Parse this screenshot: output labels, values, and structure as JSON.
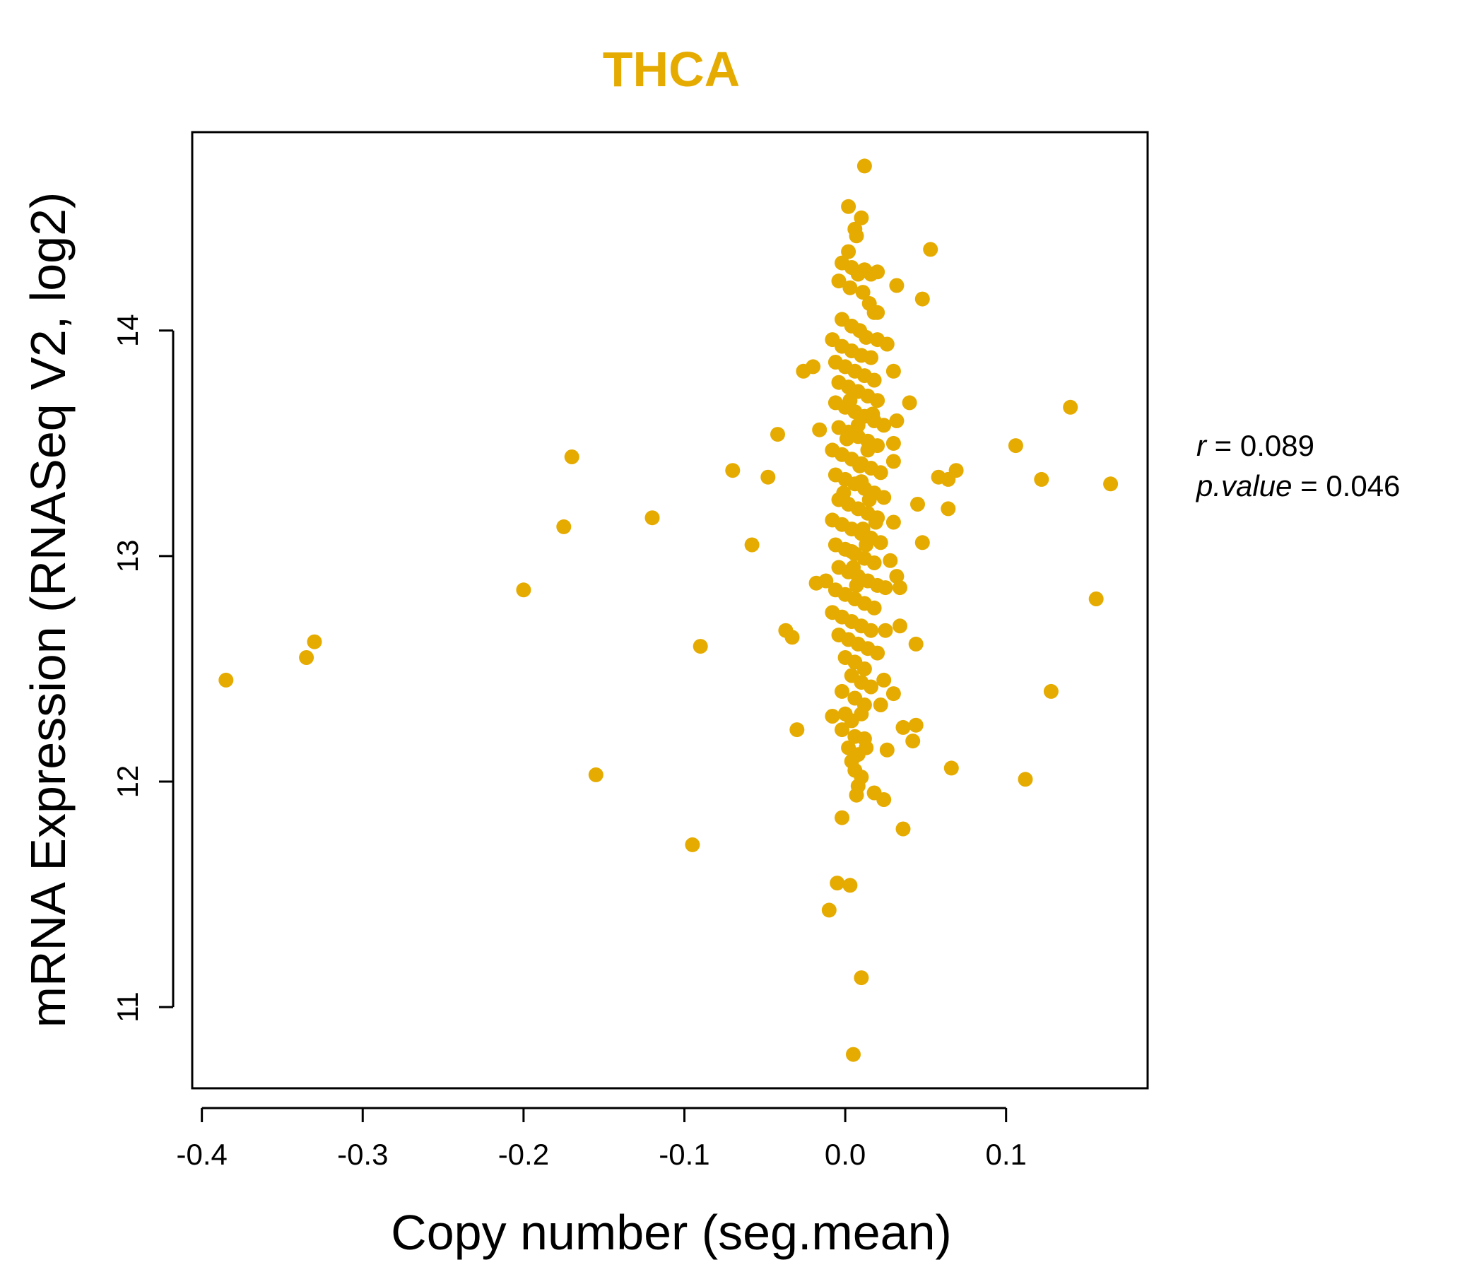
{
  "chart_data": {
    "type": "scatter",
    "title": "THCA",
    "xlabel": "Copy number (seg.mean)",
    "ylabel": "mRNA Expression (RNASeq V2, log2)",
    "xlim": [
      -0.406,
      0.188
    ],
    "ylim": [
      10.64,
      14.88
    ],
    "x_ticks": [
      -0.4,
      -0.3,
      -0.2,
      -0.1,
      0.0,
      0.1
    ],
    "x_tick_labels": [
      "-0.4",
      "-0.3",
      "-0.2",
      "-0.1",
      "0.0",
      "0.1"
    ],
    "y_ticks": [
      11,
      12,
      13,
      14
    ],
    "y_tick_labels": [
      "11",
      "12",
      "13",
      "14"
    ],
    "point_color": "#E5AB00",
    "stats": {
      "r_label": "r",
      "r_value": "0.089",
      "p_label": "p.value",
      "p_value": "0.046"
    },
    "points": [
      [
        -0.385,
        12.45
      ],
      [
        -0.335,
        12.55
      ],
      [
        -0.33,
        12.62
      ],
      [
        -0.2,
        12.85
      ],
      [
        -0.175,
        13.13
      ],
      [
        -0.17,
        13.44
      ],
      [
        -0.155,
        12.03
      ],
      [
        -0.12,
        13.17
      ],
      [
        -0.095,
        11.72
      ],
      [
        -0.09,
        12.6
      ],
      [
        -0.07,
        13.38
      ],
      [
        -0.058,
        13.05
      ],
      [
        -0.048,
        13.35
      ],
      [
        -0.042,
        13.54
      ],
      [
        -0.037,
        12.67
      ],
      [
        -0.033,
        12.64
      ],
      [
        -0.03,
        12.23
      ],
      [
        -0.026,
        13.82
      ],
      [
        -0.02,
        13.84
      ],
      [
        -0.018,
        12.88
      ],
      [
        -0.016,
        13.56
      ],
      [
        -0.012,
        12.89
      ],
      [
        -0.01,
        11.43
      ],
      [
        -0.005,
        11.55
      ],
      [
        -0.002,
        11.84
      ],
      [
        0.003,
        11.54
      ],
      [
        0.005,
        10.79
      ],
      [
        0.01,
        11.13
      ],
      [
        0.012,
        14.73
      ],
      [
        0.002,
        14.55
      ],
      [
        0.01,
        14.5
      ],
      [
        0.007,
        14.42
      ],
      [
        0.053,
        14.36
      ],
      [
        0.02,
        14.26
      ],
      [
        0.032,
        14.2
      ],
      [
        0.048,
        14.14
      ],
      [
        0.02,
        14.08
      ],
      [
        0.026,
        13.94
      ],
      [
        0.03,
        13.82
      ],
      [
        0.04,
        13.68
      ],
      [
        0.032,
        13.6
      ],
      [
        0.03,
        13.5
      ],
      [
        0.03,
        13.42
      ],
      [
        0.058,
        13.35
      ],
      [
        0.064,
        13.34
      ],
      [
        0.069,
        13.38
      ],
      [
        0.045,
        13.23
      ],
      [
        0.064,
        13.21
      ],
      [
        0.03,
        13.15
      ],
      [
        0.048,
        13.06
      ],
      [
        0.028,
        12.98
      ],
      [
        0.032,
        12.91
      ],
      [
        0.034,
        12.86
      ],
      [
        0.025,
        12.86
      ],
      [
        0.034,
        12.69
      ],
      [
        0.044,
        12.61
      ],
      [
        0.025,
        12.67
      ],
      [
        0.024,
        12.45
      ],
      [
        0.03,
        12.39
      ],
      [
        0.022,
        12.34
      ],
      [
        0.036,
        12.24
      ],
      [
        0.044,
        12.25
      ],
      [
        0.042,
        12.18
      ],
      [
        0.026,
        12.14
      ],
      [
        0.013,
        12.15
      ],
      [
        0.018,
        11.95
      ],
      [
        0.024,
        11.92
      ],
      [
        0.036,
        11.79
      ],
      [
        0.007,
        11.94
      ],
      [
        0.008,
        11.98
      ],
      [
        0.066,
        12.06
      ],
      [
        0.106,
        13.49
      ],
      [
        0.122,
        13.34
      ],
      [
        0.14,
        13.66
      ],
      [
        0.165,
        13.32
      ],
      [
        0.156,
        12.81
      ],
      [
        0.128,
        12.4
      ],
      [
        0.112,
        12.01
      ],
      [
        0.006,
        14.45
      ],
      [
        0.002,
        14.35
      ],
      [
        -0.002,
        14.3
      ],
      [
        0.004,
        14.28
      ],
      [
        0.008,
        14.25
      ],
      [
        0.012,
        14.27
      ],
      [
        0.016,
        14.25
      ],
      [
        -0.004,
        14.22
      ],
      [
        0.003,
        14.19
      ],
      [
        0.011,
        14.17
      ],
      [
        0.015,
        14.12
      ],
      [
        0.018,
        14.08
      ],
      [
        -0.002,
        14.05
      ],
      [
        0.004,
        14.02
      ],
      [
        0.009,
        14.0
      ],
      [
        0.013,
        13.97
      ],
      [
        0.02,
        13.96
      ],
      [
        -0.008,
        13.96
      ],
      [
        -0.002,
        13.93
      ],
      [
        0.004,
        13.91
      ],
      [
        0.01,
        13.89
      ],
      [
        0.016,
        13.88
      ],
      [
        -0.006,
        13.86
      ],
      [
        0.0,
        13.84
      ],
      [
        0.006,
        13.82
      ],
      [
        0.012,
        13.8
      ],
      [
        0.018,
        13.78
      ],
      [
        -0.004,
        13.77
      ],
      [
        0.002,
        13.75
      ],
      [
        0.008,
        13.73
      ],
      [
        0.014,
        13.71
      ],
      [
        0.02,
        13.69
      ],
      [
        -0.006,
        13.68
      ],
      [
        0.0,
        13.66
      ],
      [
        0.006,
        13.64
      ],
      [
        0.012,
        13.62
      ],
      [
        0.018,
        13.6
      ],
      [
        0.024,
        13.58
      ],
      [
        -0.004,
        13.57
      ],
      [
        0.002,
        13.55
      ],
      [
        0.008,
        13.53
      ],
      [
        0.014,
        13.51
      ],
      [
        0.02,
        13.49
      ],
      [
        -0.008,
        13.47
      ],
      [
        -0.002,
        13.45
      ],
      [
        0.004,
        13.43
      ],
      [
        0.01,
        13.41
      ],
      [
        0.016,
        13.39
      ],
      [
        0.022,
        13.37
      ],
      [
        -0.006,
        13.36
      ],
      [
        0.0,
        13.34
      ],
      [
        0.006,
        13.32
      ],
      [
        0.012,
        13.3
      ],
      [
        0.018,
        13.28
      ],
      [
        0.024,
        13.26
      ],
      [
        -0.004,
        13.25
      ],
      [
        0.002,
        13.23
      ],
      [
        0.008,
        13.21
      ],
      [
        0.014,
        13.19
      ],
      [
        0.02,
        13.17
      ],
      [
        -0.008,
        13.16
      ],
      [
        -0.002,
        13.14
      ],
      [
        0.004,
        13.12
      ],
      [
        0.01,
        13.1
      ],
      [
        0.016,
        13.08
      ],
      [
        0.022,
        13.06
      ],
      [
        -0.006,
        13.05
      ],
      [
        0.0,
        13.03
      ],
      [
        0.006,
        13.01
      ],
      [
        0.012,
        12.99
      ],
      [
        0.018,
        12.97
      ],
      [
        -0.004,
        12.95
      ],
      [
        0.002,
        12.93
      ],
      [
        0.008,
        12.91
      ],
      [
        0.014,
        12.89
      ],
      [
        0.02,
        12.87
      ],
      [
        -0.006,
        12.85
      ],
      [
        0.0,
        12.83
      ],
      [
        0.006,
        12.81
      ],
      [
        0.012,
        12.79
      ],
      [
        0.018,
        12.77
      ],
      [
        -0.008,
        12.75
      ],
      [
        -0.002,
        12.73
      ],
      [
        0.004,
        12.71
      ],
      [
        0.01,
        12.69
      ],
      [
        0.016,
        12.67
      ],
      [
        -0.004,
        12.65
      ],
      [
        0.002,
        12.63
      ],
      [
        0.008,
        12.61
      ],
      [
        0.014,
        12.59
      ],
      [
        0.02,
        12.57
      ],
      [
        0.0,
        12.55
      ],
      [
        0.006,
        12.53
      ],
      [
        0.012,
        12.5
      ],
      [
        0.004,
        12.47
      ],
      [
        0.01,
        12.44
      ],
      [
        0.016,
        12.42
      ],
      [
        -0.002,
        12.4
      ],
      [
        0.006,
        12.37
      ],
      [
        0.012,
        12.34
      ],
      [
        0.0,
        12.3
      ],
      [
        0.01,
        12.3
      ],
      [
        -0.008,
        12.29
      ],
      [
        0.004,
        12.27
      ],
      [
        -0.002,
        12.23
      ],
      [
        0.006,
        12.2
      ],
      [
        0.012,
        12.19
      ],
      [
        0.002,
        12.15
      ],
      [
        0.008,
        12.12
      ],
      [
        0.004,
        12.09
      ],
      [
        0.006,
        12.05
      ],
      [
        0.01,
        12.02
      ],
      [
        0.004,
        13.02
      ],
      [
        0.01,
        13.33
      ],
      [
        0.014,
        13.47
      ],
      [
        0.008,
        13.58
      ],
      [
        0.003,
        13.69
      ],
      [
        0.011,
        13.12
      ],
      [
        0.005,
        12.95
      ],
      [
        0.015,
        13.25
      ],
      [
        0.009,
        13.4
      ],
      [
        0.001,
        13.52
      ],
      [
        0.007,
        12.87
      ],
      [
        0.013,
        13.05
      ],
      [
        0.017,
        13.63
      ],
      [
        -0.001,
        13.28
      ],
      [
        0.019,
        13.15
      ]
    ]
  }
}
